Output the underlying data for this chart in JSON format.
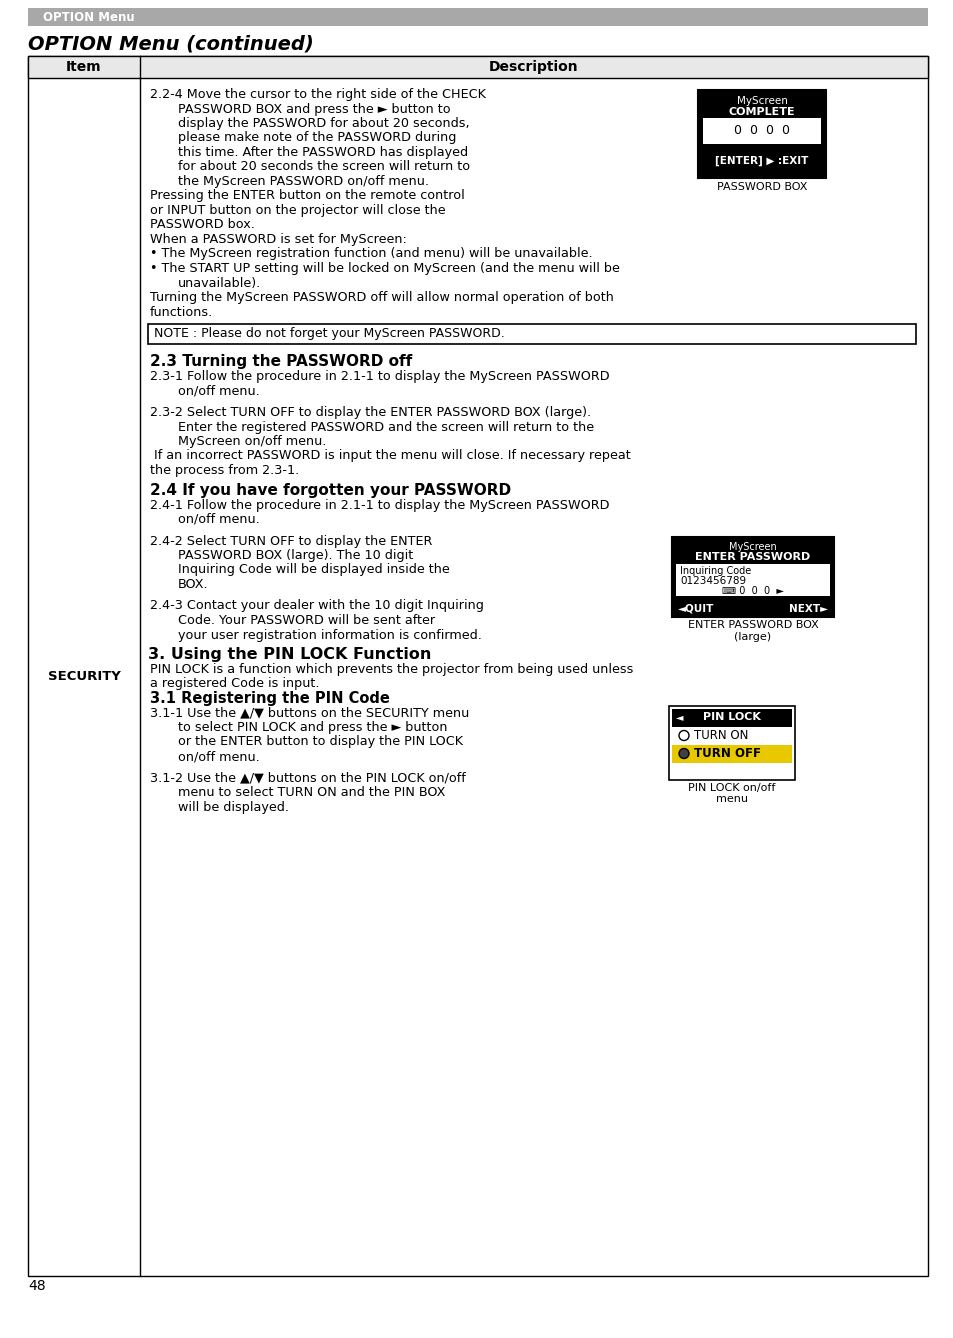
{
  "page_bg": "#ffffff",
  "header_bg": "#a8a8a8",
  "header_text": "OPTION Menu",
  "header_text_color": "#ffffff",
  "title": "OPTION Menu (continued)",
  "col1_header": "Item",
  "col2_header": "Description",
  "col1_item": "SECURITY",
  "page_number": "48",
  "note_text": "NOTE : Please do not forget your MyScreen PASSWORD.",
  "section_23_title": "2.3 Turning the PASSWORD off",
  "section_24_title": "2.4 If you have forgotten your PASSWORD",
  "section_3_title": "3. Using the PIN LOCK Function",
  "section_31_title": "3.1 Registering the PIN Code"
}
